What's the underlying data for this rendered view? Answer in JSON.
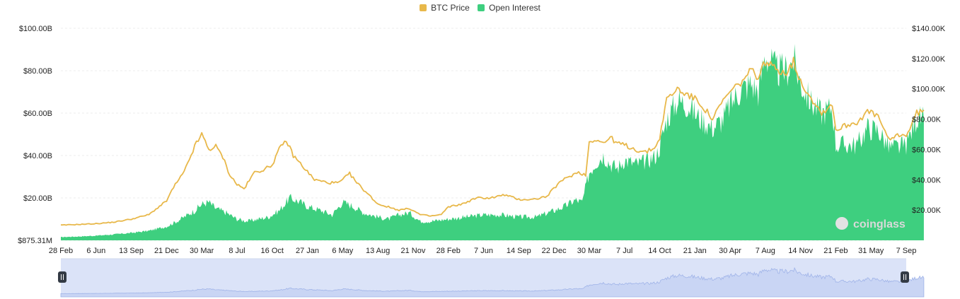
{
  "legend": {
    "btc_label": "BTC Price",
    "oi_label": "Open Interest"
  },
  "watermark": "coinglass",
  "colors": {
    "btc_price": "#e8b84a",
    "open_interest": "#3ecf7f",
    "navigator_fill": "#dbe3f8",
    "navigator_line": "#9fb3e8"
  },
  "chart_data": {
    "type": "area",
    "x_ticks": [
      "28 Feb",
      "6 Jun",
      "13 Sep",
      "21 Dec",
      "30 Mar",
      "8 Jul",
      "16 Oct",
      "27 Jan",
      "6 May",
      "13 Aug",
      "21 Nov",
      "28 Feb",
      "7 Jun",
      "14 Sep",
      "22 Dec",
      "30 Mar",
      "7 Jul",
      "14 Oct",
      "21 Jan",
      "30 Apr",
      "7 Aug",
      "14 Nov",
      "21 Feb",
      "31 May",
      "7 Sep"
    ],
    "y_left_ticks": [
      "$875.31M",
      "$20.00B",
      "$40.00B",
      "$60.00B",
      "$80.00B",
      "$100.00B"
    ],
    "y_left_ylim": [
      0,
      100
    ],
    "y_left_unit": "B",
    "y_right_ticks": [
      "$20.00K",
      "$40.00K",
      "$60.00K",
      "$80.00K",
      "$100.00K",
      "$120.00K",
      "$140.00K"
    ],
    "y_right_ylim": [
      0,
      140
    ],
    "y_right_unit": "K",
    "x_index": [
      0,
      1,
      2,
      3,
      4,
      5,
      6,
      7,
      8,
      9,
      10,
      11,
      12,
      13,
      14,
      15,
      16,
      17,
      18,
      19,
      20,
      21,
      22,
      23,
      24
    ],
    "series": [
      {
        "name": "Open Interest",
        "axis": "left",
        "points": [
          [
            0,
            1.5
          ],
          [
            0.5,
            1.8
          ],
          [
            1,
            2.2
          ],
          [
            1.5,
            2.8
          ],
          [
            2,
            3.5
          ],
          [
            2.5,
            4.5
          ],
          [
            3,
            6.5
          ],
          [
            3.3,
            9
          ],
          [
            3.6,
            12
          ],
          [
            3.8,
            14
          ],
          [
            4,
            17
          ],
          [
            4.2,
            18
          ],
          [
            4.4,
            15
          ],
          [
            4.7,
            13
          ],
          [
            5,
            10
          ],
          [
            5.3,
            9
          ],
          [
            5.6,
            10
          ],
          [
            5.9,
            11
          ],
          [
            6.2,
            14
          ],
          [
            6.5,
            20
          ],
          [
            6.8,
            18
          ],
          [
            7,
            16
          ],
          [
            7.4,
            14
          ],
          [
            7.7,
            12
          ],
          [
            8,
            18
          ],
          [
            8.3,
            16
          ],
          [
            8.6,
            13
          ],
          [
            9,
            11
          ],
          [
            9.3,
            10
          ],
          [
            9.6,
            12
          ],
          [
            9.9,
            13
          ],
          [
            10.2,
            9
          ],
          [
            10.5,
            9
          ],
          [
            11,
            10
          ],
          [
            11.5,
            11
          ],
          [
            12,
            12
          ],
          [
            12.5,
            12
          ],
          [
            13,
            11
          ],
          [
            13.5,
            11
          ],
          [
            14,
            14
          ],
          [
            14.3,
            16
          ],
          [
            14.6,
            19
          ],
          [
            14.8,
            18
          ],
          [
            15,
            32
          ],
          [
            15.2,
            37
          ],
          [
            15.4,
            40
          ],
          [
            15.6,
            36
          ],
          [
            15.8,
            34
          ],
          [
            16,
            38
          ],
          [
            16.3,
            36
          ],
          [
            16.6,
            37
          ],
          [
            16.9,
            40
          ],
          [
            17,
            44
          ],
          [
            17.2,
            57
          ],
          [
            17.5,
            66
          ],
          [
            17.8,
            64
          ],
          [
            18.1,
            58
          ],
          [
            18.5,
            53
          ],
          [
            18.8,
            57
          ],
          [
            19,
            64
          ],
          [
            19.3,
            71
          ],
          [
            19.6,
            74
          ],
          [
            19.8,
            70
          ],
          [
            20,
            88
          ],
          [
            20.3,
            80
          ],
          [
            20.6,
            80
          ],
          [
            20.8,
            85
          ],
          [
            21,
            74
          ],
          [
            21.3,
            65
          ],
          [
            21.6,
            60
          ],
          [
            21.9,
            63
          ],
          [
            22,
            45
          ],
          [
            22.3,
            45
          ],
          [
            22.6,
            45
          ],
          [
            22.9,
            53
          ],
          [
            23.2,
            52
          ],
          [
            23.5,
            44
          ],
          [
            23.8,
            44
          ],
          [
            24,
            45
          ],
          [
            24.3,
            58
          ],
          [
            24.5,
            57
          ]
        ]
      },
      {
        "name": "BTC Price",
        "axis": "right",
        "points": [
          [
            0,
            10
          ],
          [
            0.5,
            10.5
          ],
          [
            1,
            11
          ],
          [
            1.5,
            12
          ],
          [
            2,
            14
          ],
          [
            2.5,
            17
          ],
          [
            3,
            26
          ],
          [
            3.2,
            35
          ],
          [
            3.5,
            45
          ],
          [
            3.8,
            62
          ],
          [
            4,
            70
          ],
          [
            4.2,
            60
          ],
          [
            4.4,
            62
          ],
          [
            4.6,
            55
          ],
          [
            4.8,
            43
          ],
          [
            5,
            37
          ],
          [
            5.2,
            34
          ],
          [
            5.5,
            45
          ],
          [
            5.8,
            47
          ],
          [
            6,
            50
          ],
          [
            6.2,
            60
          ],
          [
            6.4,
            66
          ],
          [
            6.6,
            56
          ],
          [
            6.9,
            48
          ],
          [
            7.2,
            40
          ],
          [
            7.6,
            38
          ],
          [
            7.9,
            38
          ],
          [
            8.2,
            44
          ],
          [
            8.4,
            38
          ],
          [
            8.7,
            31
          ],
          [
            9,
            24
          ],
          [
            9.3,
            22
          ],
          [
            9.6,
            20
          ],
          [
            9.9,
            21
          ],
          [
            10.2,
            17
          ],
          [
            10.5,
            16
          ],
          [
            10.8,
            17
          ],
          [
            11,
            22
          ],
          [
            11.4,
            24
          ],
          [
            11.8,
            28
          ],
          [
            12.2,
            28
          ],
          [
            12.6,
            30
          ],
          [
            13,
            27
          ],
          [
            13.4,
            27
          ],
          [
            13.8,
            29
          ],
          [
            14.1,
            37
          ],
          [
            14.4,
            42
          ],
          [
            14.7,
            45
          ],
          [
            14.9,
            43
          ],
          [
            15,
            65
          ],
          [
            15.2,
            67
          ],
          [
            15.4,
            64
          ],
          [
            15.6,
            68
          ],
          [
            15.8,
            64
          ],
          [
            16,
            63
          ],
          [
            16.3,
            60
          ],
          [
            16.6,
            58
          ],
          [
            16.9,
            62
          ],
          [
            17,
            68
          ],
          [
            17.2,
            93
          ],
          [
            17.5,
            100
          ],
          [
            17.8,
            96
          ],
          [
            18.1,
            92
          ],
          [
            18.5,
            80
          ],
          [
            18.8,
            92
          ],
          [
            19,
            98
          ],
          [
            19.3,
            104
          ],
          [
            19.6,
            112
          ],
          [
            19.8,
            108
          ],
          [
            20,
            118
          ],
          [
            20.3,
            113
          ],
          [
            20.6,
            111
          ],
          [
            20.8,
            118
          ],
          [
            21,
            105
          ],
          [
            21.3,
            94
          ],
          [
            21.6,
            84
          ],
          [
            21.9,
            90
          ],
          [
            22,
            73
          ],
          [
            22.3,
            76
          ],
          [
            22.6,
            78
          ],
          [
            22.9,
            85
          ],
          [
            23.2,
            82
          ],
          [
            23.5,
            66
          ],
          [
            23.8,
            70
          ],
          [
            24,
            69
          ],
          [
            24.3,
            84
          ],
          [
            24.5,
            86
          ]
        ]
      }
    ],
    "legend_position": "top-center",
    "grid": true
  }
}
